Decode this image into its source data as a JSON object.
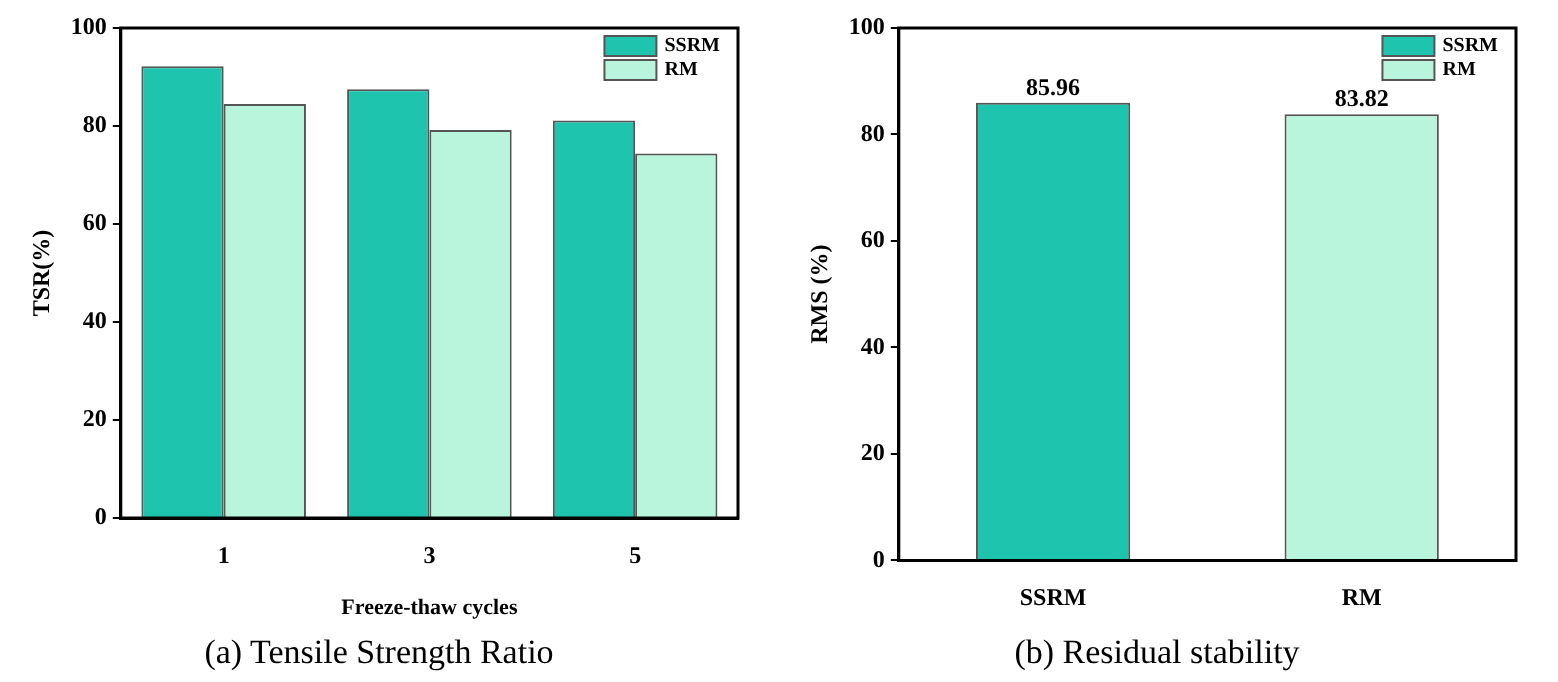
{
  "chart_data": [
    {
      "type": "bar",
      "title": "(a) Tensile Strength Ratio",
      "xlabel": "Freeze-thaw cycles",
      "ylabel": "TSR(%)",
      "categories": [
        "1",
        "3",
        "5"
      ],
      "series": [
        {
          "name": "SSRM",
          "color": "#1ec4ad",
          "values": [
            92.2,
            87.5,
            81.1
          ]
        },
        {
          "name": "RM",
          "color": "#b8f5dc",
          "values": [
            84.5,
            79.2,
            74.4
          ]
        }
      ],
      "ylim": [
        0,
        100
      ],
      "yticks": [
        0,
        20,
        40,
        60,
        80,
        100
      ],
      "grid": false,
      "legend": "top right"
    },
    {
      "type": "bar",
      "title": "(b) Residual stability",
      "ylabel": "RMS (%)",
      "categories": [
        "SSRM",
        "RM"
      ],
      "series": [
        {
          "name": "SSRM",
          "color": "#1ec4ad",
          "values": [
            85.96,
            null
          ]
        },
        {
          "name": "RM",
          "color": "#b8f5dc",
          "values": [
            null,
            83.82
          ]
        }
      ],
      "ylim": [
        0,
        100
      ],
      "yticks": [
        0,
        20,
        40,
        60,
        80,
        100
      ],
      "grid": false,
      "legend": "top right",
      "data_labels": true
    }
  ]
}
